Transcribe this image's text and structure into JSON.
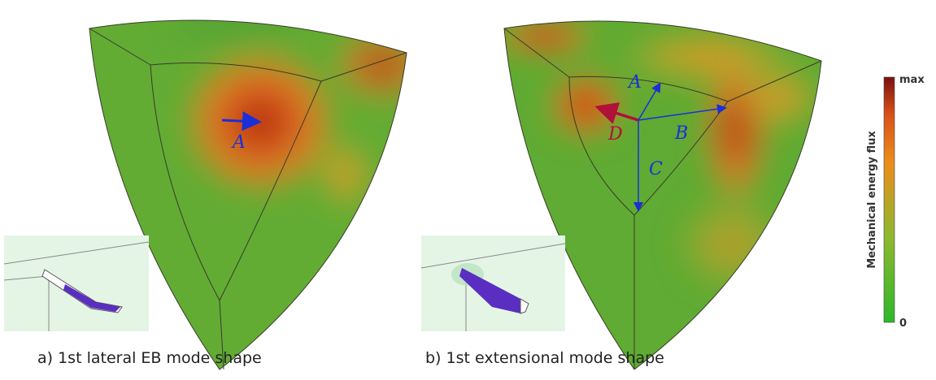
{
  "panel_a": {
    "labels": [
      "A"
    ],
    "caption": "a) 1st lateral EB mode shape"
  },
  "panel_b": {
    "labels": [
      "A",
      "B",
      "C",
      "D"
    ],
    "caption": "b) 1st extensional mode shape"
  },
  "colorbar": {
    "title": "Mechanical energy flux",
    "max_label": "max",
    "min_label": "0"
  }
}
